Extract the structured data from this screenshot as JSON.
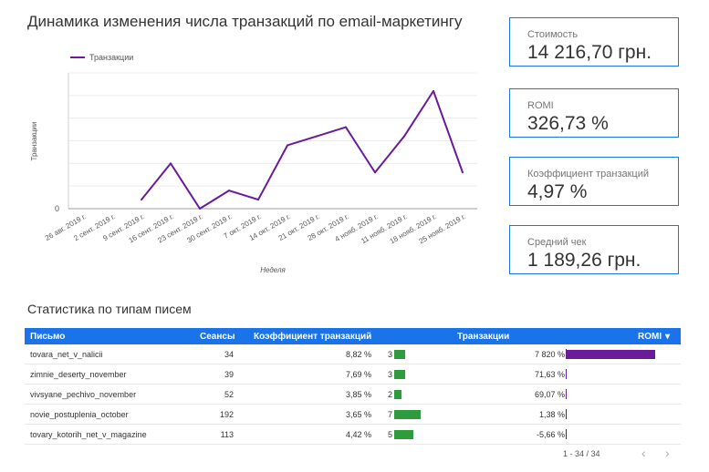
{
  "chart": {
    "title": "Динамика изменения числа транзакций по email-маркетингу",
    "legend_label": "Транзакции",
    "ylabel": "Транзакции",
    "xlabel": "Неделя",
    "y_zero_label": "0",
    "series_color": "#6a1b9a"
  },
  "chart_data": {
    "type": "line",
    "title": "Динамика изменения числа транзакций по email-маркетингу",
    "xlabel": "Неделя",
    "ylabel": "Транзакции",
    "categories": [
      "26 авг. 2019 г.",
      "2 сент. 2019 г.",
      "9 сент. 2019 г.",
      "16 сент. 2019 г.",
      "23 сент. 2019 г.",
      "30 сент. 2019 г.",
      "7 окт. 2019 г.",
      "14 окт. 2019 г.",
      "21 окт. 2019 г.",
      "28 окт. 2019 г.",
      "4 нояб. 2019 г.",
      "11 нояб. 2019 г.",
      "18 нояб. 2019 г.",
      "25 нояб. 2019 г."
    ],
    "series": [
      {
        "name": "Транзакции",
        "values": [
          null,
          null,
          1,
          5,
          0,
          2,
          1,
          7,
          8,
          9,
          4,
          8,
          13,
          4
        ]
      }
    ],
    "ylim": [
      0,
      15
    ],
    "grid": true,
    "legend": "top-left"
  },
  "kpis": [
    {
      "label": "Стоимость",
      "value": "14 216,70 грн."
    },
    {
      "label": "ROMI",
      "value": "326,73 %"
    },
    {
      "label": "Коэффициент транзакций",
      "value": "4,97 %"
    },
    {
      "label": "Средний чек",
      "value": "1 189,26 грн."
    }
  ],
  "table": {
    "title": "Статистика по типам писем",
    "headers": {
      "letter": "Письмо",
      "sessions": "Сеансы",
      "conv_rate": "Коэффициент транзакций",
      "transactions": "Транзакции",
      "romi": "ROMI",
      "sort_indicator": "▾"
    },
    "rows": [
      {
        "letter": "tovara_net_v_nalicii",
        "sessions": "34",
        "conv_rate": "8,82 %",
        "transactions": "3",
        "transactions_value": 3,
        "romi": "7 820 %",
        "romi_value": 7820
      },
      {
        "letter": "zimnie_deserty_november",
        "sessions": "39",
        "conv_rate": "7,69 %",
        "transactions": "3",
        "transactions_value": 3,
        "romi": "71,63 %",
        "romi_value": 71.63
      },
      {
        "letter": "vivsyane_pechivo_november",
        "sessions": "52",
        "conv_rate": "3,85 %",
        "transactions": "2",
        "transactions_value": 2,
        "romi": "69,07 %",
        "romi_value": 69.07
      },
      {
        "letter": "novie_postuplenia_october",
        "sessions": "192",
        "conv_rate": "3,65 %",
        "transactions": "7",
        "transactions_value": 7,
        "romi": "1,38 %",
        "romi_value": 1.38
      },
      {
        "letter": "tovary_kotorih_net_v_magazine",
        "sessions": "113",
        "conv_rate": "4,42 %",
        "transactions": "5",
        "transactions_value": 5,
        "romi": "-5,66 %",
        "romi_value": -5.66
      }
    ],
    "bar_colors": {
      "transactions": "#2e9c3e",
      "romi": "#6a1b9a"
    },
    "pager": {
      "text": "1 - 34 / 34",
      "prev": "‹",
      "next": "›"
    }
  }
}
